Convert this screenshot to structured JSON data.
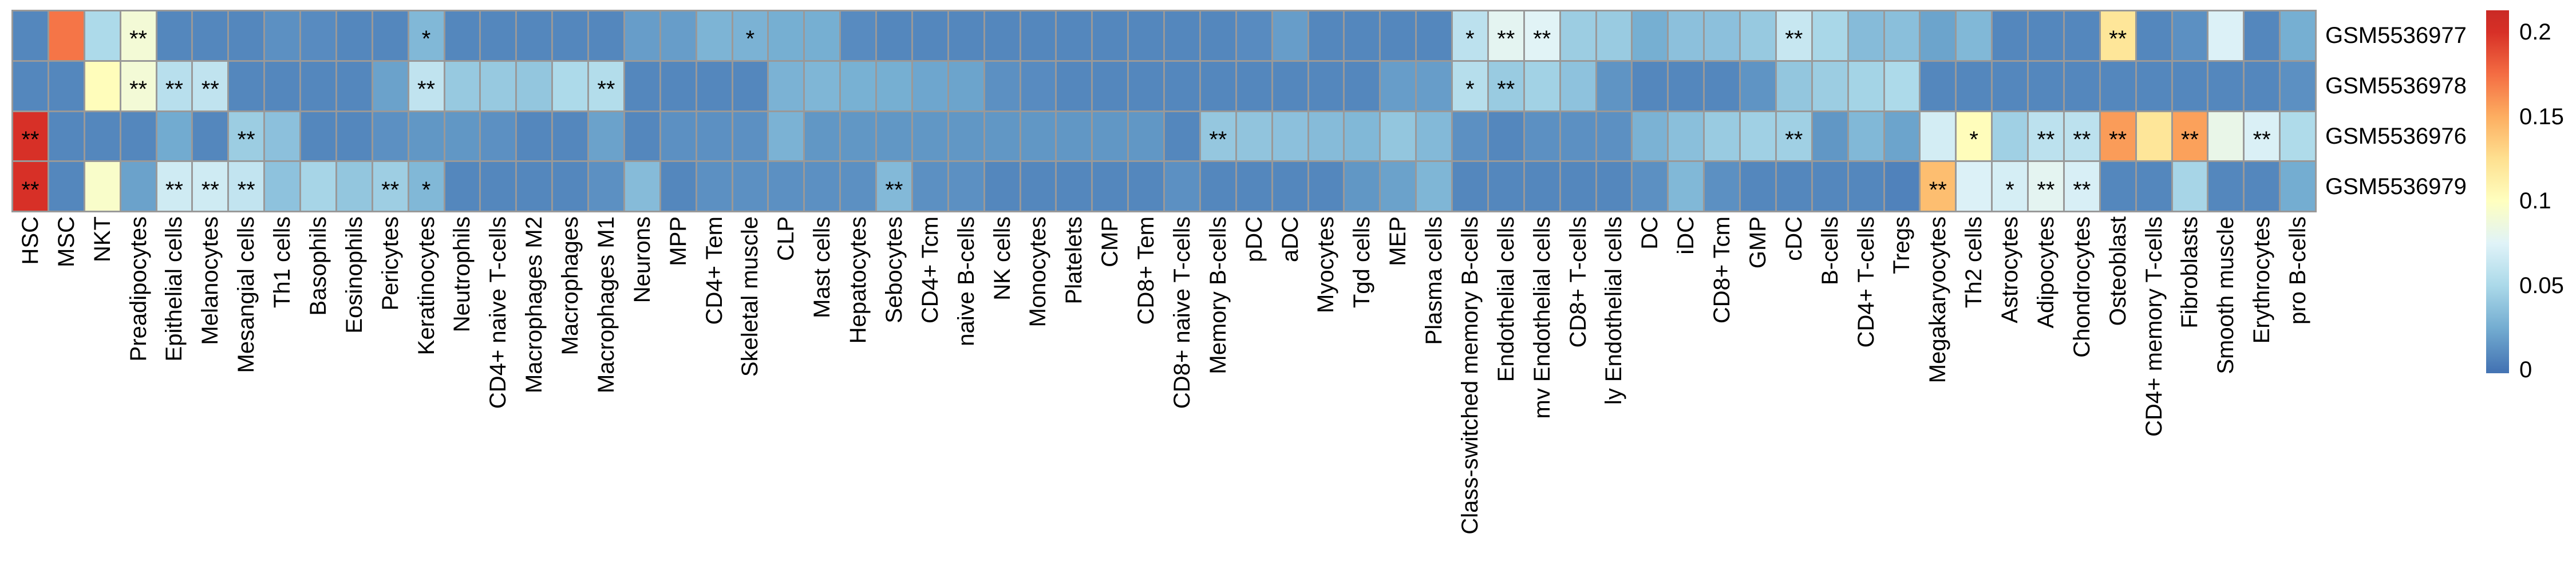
{
  "chart_data": {
    "type": "heatmap",
    "title": "",
    "background_color": "#ffffff",
    "grid_color": "#999999",
    "rows": [
      "GSM5536977",
      "GSM5536978",
      "GSM5536976",
      "GSM5536979"
    ],
    "categories": [
      "HSC",
      "MSC",
      "NKT",
      "Preadipocytes",
      "Epithelial cells",
      "Melanocytes",
      "Mesangial cells",
      "Th1 cells",
      "Basophils",
      "Eosinophils",
      "Pericytes",
      "Keratinocytes",
      "Neutrophils",
      "CD4+ naive T-cells",
      "Macrophages M2",
      "Macrophages",
      "Macrophages M1",
      "Neurons",
      "MPP",
      "CD4+ Tem",
      "Skeletal muscle",
      "CLP",
      "Mast cells",
      "Hepatocytes",
      "Sebocytes",
      "CD4+ Tcm",
      "naive B-cells",
      "NK cells",
      "Monocytes",
      "Platelets",
      "CMP",
      "CD8+ Tem",
      "CD8+ naive T-cells",
      "Memory B-cells",
      "pDC",
      "aDC",
      "Myocytes",
      "Tgd cells",
      "MEP",
      "Plasma cells",
      "Class-switched memory B-cells",
      "Endothelial cells",
      "mv Endothelial cells",
      "CD8+ T-cells",
      "ly Endothelial cells",
      "DC",
      "iDC",
      "CD8+ Tcm",
      "GMP",
      "cDC",
      "B-cells",
      "CD4+ T-cells",
      "Tregs",
      "Megakaryocytes",
      "Th2 cells",
      "Astrocytes",
      "Adipocytes",
      "Chondrocytes",
      "Osteoblast",
      "CD4+ memory T-cells",
      "Fibroblasts",
      "Smooth muscle",
      "Erythrocytes",
      "pro B-cells"
    ],
    "series": [
      {
        "name": "GSM5536977",
        "values": [
          0.008,
          0.172,
          0.051,
          0.09,
          0.008,
          0.008,
          0.008,
          0.012,
          0.01,
          0.008,
          0.008,
          0.031,
          0.008,
          0.008,
          0.008,
          0.008,
          0.008,
          0.018,
          0.018,
          0.029,
          0.028,
          0.026,
          0.026,
          0.01,
          0.008,
          0.008,
          0.008,
          0.008,
          0.008,
          0.008,
          0.008,
          0.008,
          0.008,
          0.008,
          0.01,
          0.018,
          0.008,
          0.008,
          0.008,
          0.008,
          0.058,
          0.078,
          0.076,
          0.043,
          0.042,
          0.026,
          0.036,
          0.036,
          0.041,
          0.063,
          0.049,
          0.033,
          0.035,
          0.021,
          0.031,
          0.008,
          0.008,
          0.008,
          0.12,
          0.008,
          0.012,
          0.073,
          0.008,
          0.026
        ],
        "significance": [
          "",
          "",
          "",
          "**",
          "",
          "",
          "",
          "",
          "",
          "",
          "",
          "*",
          "",
          "",
          "",
          "",
          "",
          "",
          "",
          "",
          "*",
          "",
          "",
          "",
          "",
          "",
          "",
          "",
          "",
          "",
          "",
          "",
          "",
          "",
          "",
          "",
          "",
          "",
          "",
          "",
          "*",
          "**",
          "**",
          "",
          "",
          "",
          "",
          "",
          "",
          "**",
          "",
          "",
          "",
          "",
          "",
          "",
          "",
          "",
          "**",
          "",
          "",
          "",
          "",
          ""
        ]
      },
      {
        "name": "GSM5536978",
        "values": [
          0.008,
          0.008,
          0.102,
          0.09,
          0.056,
          0.06,
          0.008,
          0.008,
          0.008,
          0.008,
          0.02,
          0.06,
          0.041,
          0.041,
          0.039,
          0.051,
          0.054,
          0.008,
          0.008,
          0.008,
          0.008,
          0.028,
          0.03,
          0.027,
          0.026,
          0.022,
          0.021,
          0.012,
          0.01,
          0.008,
          0.008,
          0.008,
          0.008,
          0.008,
          0.008,
          0.008,
          0.008,
          0.008,
          0.018,
          0.018,
          0.055,
          0.042,
          0.046,
          0.037,
          0.014,
          0.008,
          0.008,
          0.008,
          0.014,
          0.039,
          0.043,
          0.047,
          0.051,
          0.008,
          0.008,
          0.008,
          0.008,
          0.008,
          0.008,
          0.008,
          0.008,
          0.008,
          0.008,
          0.012
        ],
        "significance": [
          "",
          "",
          "",
          "**",
          "**",
          "**",
          "",
          "",
          "",
          "",
          "",
          "**",
          "",
          "",
          "",
          "",
          "**",
          "",
          "",
          "",
          "",
          "",
          "",
          "",
          "",
          "",
          "",
          "",
          "",
          "",
          "",
          "",
          "",
          "",
          "",
          "",
          "",
          "",
          "",
          "",
          "*",
          "**",
          "",
          "",
          "",
          "",
          "",
          "",
          "",
          "",
          "",
          "",
          "",
          "",
          "",
          "",
          "",
          "",
          "",
          "",
          "",
          "",
          "",
          ""
        ]
      },
      {
        "name": "GSM5536976",
        "values": [
          0.2,
          0.008,
          0.008,
          0.008,
          0.024,
          0.008,
          0.043,
          0.036,
          0.008,
          0.008,
          0.012,
          0.015,
          0.015,
          0.012,
          0.008,
          0.008,
          0.02,
          0.008,
          0.012,
          0.012,
          0.012,
          0.028,
          0.015,
          0.015,
          0.015,
          0.015,
          0.015,
          0.015,
          0.015,
          0.015,
          0.015,
          0.015,
          0.008,
          0.04,
          0.038,
          0.036,
          0.033,
          0.031,
          0.039,
          0.032,
          0.012,
          0.008,
          0.012,
          0.012,
          0.012,
          0.028,
          0.035,
          0.042,
          0.045,
          0.045,
          0.015,
          0.031,
          0.021,
          0.069,
          0.102,
          0.045,
          0.058,
          0.058,
          0.157,
          0.12,
          0.155,
          0.082,
          0.072,
          0.052
        ],
        "significance": [
          "**",
          "",
          "",
          "",
          "",
          "",
          "**",
          "",
          "",
          "",
          "",
          "",
          "",
          "",
          "",
          "",
          "",
          "",
          "",
          "",
          "",
          "",
          "",
          "",
          "",
          "",
          "",
          "",
          "",
          "",
          "",
          "",
          "",
          "**",
          "",
          "",
          "",
          "",
          "",
          "",
          "",
          "",
          "",
          "",
          "",
          "",
          "",
          "",
          "",
          "**",
          "",
          "",
          "",
          "",
          "*",
          "",
          "**",
          "**",
          "**",
          "",
          "**",
          "",
          "**",
          ""
        ]
      },
      {
        "name": "GSM5536979",
        "values": [
          0.2,
          0.008,
          0.095,
          0.02,
          0.067,
          0.067,
          0.061,
          0.037,
          0.048,
          0.039,
          0.044,
          0.031,
          0.008,
          0.008,
          0.008,
          0.008,
          0.012,
          0.033,
          0.008,
          0.012,
          0.012,
          0.012,
          0.012,
          0.012,
          0.032,
          0.012,
          0.012,
          0.008,
          0.008,
          0.008,
          0.008,
          0.008,
          0.012,
          0.008,
          0.008,
          0.008,
          0.008,
          0.015,
          0.02,
          0.03,
          0.008,
          0.008,
          0.008,
          0.008,
          0.008,
          0.012,
          0.031,
          0.012,
          0.008,
          0.008,
          0.008,
          0.008,
          0.006,
          0.142,
          0.073,
          0.07,
          0.078,
          0.071,
          0.008,
          0.008,
          0.048,
          0.008,
          0.008,
          0.025
        ],
        "significance": [
          "**",
          "",
          "",
          "",
          "**",
          "**",
          "**",
          "",
          "",
          "",
          "**",
          "*",
          "",
          "",
          "",
          "",
          "",
          "",
          "",
          "",
          "",
          "",
          "",
          "",
          "**",
          "",
          "",
          "",
          "",
          "",
          "",
          "",
          "",
          "",
          "",
          "",
          "",
          "",
          "",
          "",
          "",
          "",
          "",
          "",
          "",
          "",
          "",
          "",
          "",
          "",
          "",
          "",
          "",
          "**",
          "",
          "*",
          "**",
          "**",
          "",
          "",
          "",
          "",
          "",
          ""
        ]
      }
    ],
    "value_range": [
      0,
      0.2
    ],
    "colormap": [
      [
        0.0,
        "#4575b4"
      ],
      [
        0.025,
        "#74add1"
      ],
      [
        0.05,
        "#abd9e9"
      ],
      [
        0.075,
        "#e0f3f8"
      ],
      [
        0.1,
        "#ffffbf"
      ],
      [
        0.125,
        "#fee090"
      ],
      [
        0.15,
        "#fdae61"
      ],
      [
        0.175,
        "#f46d43"
      ],
      [
        0.2,
        "#d73027"
      ],
      [
        0.213,
        "#ca2a25"
      ]
    ],
    "colorbar": {
      "ticks": [
        {
          "label": "0.2",
          "value": 0.2
        },
        {
          "label": "0.15",
          "value": 0.15
        },
        {
          "label": "0.1",
          "value": 0.1
        },
        {
          "label": "0.05",
          "value": 0.05
        },
        {
          "label": "0",
          "value": 0.0
        }
      ],
      "vmin": -0.002,
      "vmax": 0.213
    },
    "legend_position": "right",
    "grid": true
  }
}
